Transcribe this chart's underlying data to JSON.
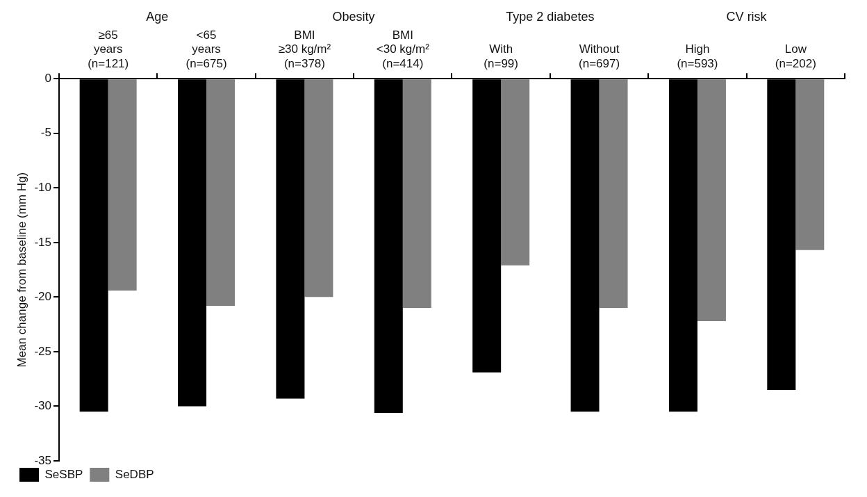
{
  "chart_data": {
    "type": "bar",
    "ylabel": "Mean change from baseline (mm Hg)",
    "categories": [
      "≥65\nyears\n(n=121)",
      "<65\nyears\n(n=675)",
      "BMI\n≥30 kg/m²\n(n=378)",
      "BMI\n<30 kg/m²\n(n=414)",
      "With\n(n=99)",
      "Without\n(n=697)",
      "High\n(n=593)",
      "Low\n(n=202)"
    ],
    "series": [
      {
        "name": "SeSBP",
        "color": "#000000",
        "values": [
          -30.5,
          -30,
          -29.3,
          -30.6,
          -26.9,
          -30.5,
          -30.5,
          -28.5
        ]
      },
      {
        "name": "SeDBP",
        "color": "#808080",
        "values": [
          -19.4,
          -20.8,
          -20,
          -21,
          -17.1,
          -21,
          -22.2,
          -15.7
        ]
      }
    ],
    "annotations": [
      "Age",
      "Obesity",
      "Type 2 diabetes",
      "CV risk"
    ],
    "ylim": [
      -35,
      0
    ],
    "yticks": [
      0,
      -5,
      -10,
      -15,
      -20,
      -25,
      -30,
      -35
    ],
    "grid": false,
    "legend": "bottom left"
  }
}
